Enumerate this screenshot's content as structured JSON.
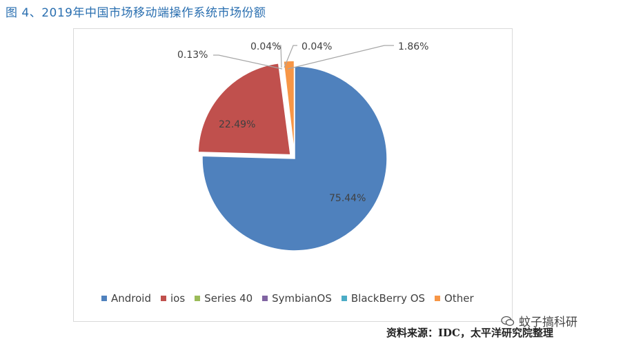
{
  "title": "图 4、2019年中国市场移动端操作系统市场份额",
  "source": "资料来源：IDC，太平洋研究院整理",
  "watermark": {
    "text": "蚊子搞科研",
    "icon": "wechat-icon"
  },
  "chart_data": {
    "type": "pie",
    "legend_position": "bottom",
    "slices": [
      {
        "label": "Android",
        "value": 75.44,
        "display": "75.44%",
        "color": "#4f81bd"
      },
      {
        "label": "ios",
        "value": 22.49,
        "display": "22.49%",
        "color": "#c0504d"
      },
      {
        "label": "Series 40",
        "value": 0.04,
        "display": "0.04%",
        "color": "#9bbb59"
      },
      {
        "label": "SymbianOS",
        "value": 0.13,
        "display": "0.13%",
        "color": "#8064a2"
      },
      {
        "label": "BlackBerry OS",
        "value": 0.04,
        "display": "0.04%",
        "color": "#4bacc6"
      },
      {
        "label": "Other",
        "value": 1.86,
        "display": "1.86%",
        "color": "#f79646"
      }
    ]
  }
}
